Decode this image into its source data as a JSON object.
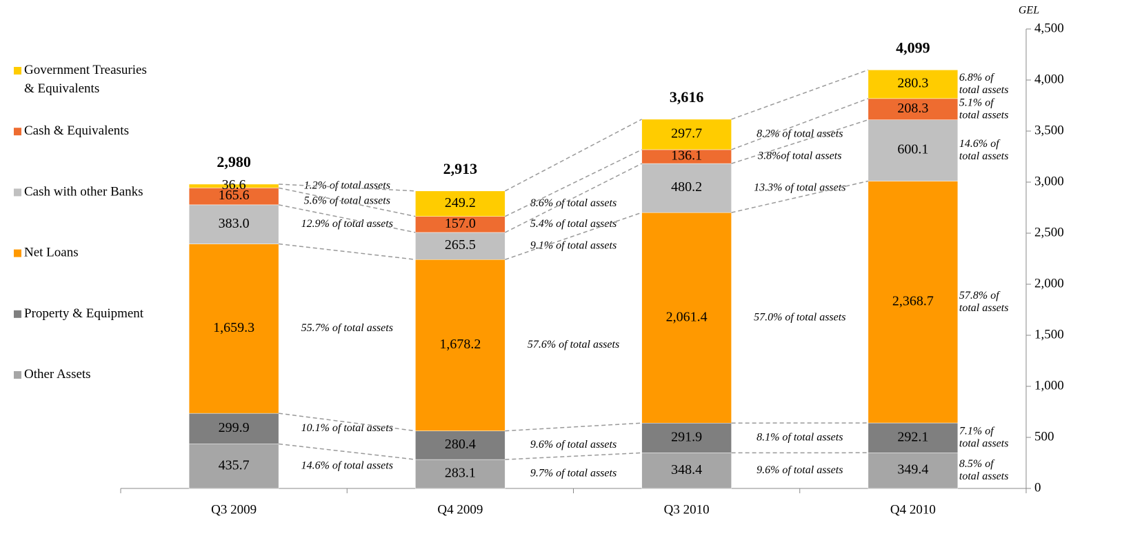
{
  "chart_data": {
    "type": "stacked_bar",
    "unit": "GEL",
    "categories": [
      "Q3 2009",
      "Q4 2009",
      "Q3 2010",
      "Q4 2010"
    ],
    "series": [
      {
        "name": "Other Assets",
        "color": "#a6a6a6",
        "values": [
          435.7,
          283.1,
          348.4,
          349.4
        ],
        "share_labels": [
          "14.6% of total assets",
          "9.7% of total assets",
          "9.6% of total assets",
          "8.5% of total assets"
        ]
      },
      {
        "name": "Property & Equipment",
        "color": "#7f7f7f",
        "values": [
          299.9,
          280.4,
          291.9,
          292.1
        ],
        "share_labels": [
          "10.1% of total assets",
          "9.6% of total assets",
          "8.1% of total assets",
          "7.1% of total assets"
        ]
      },
      {
        "name": "Net Loans",
        "color": "#ff9900",
        "values": [
          1659.3,
          1678.2,
          2061.4,
          2368.7
        ],
        "value_labels": [
          "1,659.3",
          "1,678.2",
          "2,061.4",
          "2,368.7"
        ],
        "share_labels": [
          "55.7% of total assets",
          "57.6% of total assets",
          "57.0% of total assets",
          "57.8% of total assets"
        ]
      },
      {
        "name": "Cash with other Banks",
        "color": "#c0c0c0",
        "values": [
          383.0,
          265.5,
          480.2,
          600.1
        ],
        "value_labels": [
          "383.0",
          "265.5",
          "480.2",
          "600.1"
        ],
        "share_labels": [
          "12.9% of total assets",
          "9.1% of total assets",
          "13.3% of total assets",
          "14.6% of total assets"
        ]
      },
      {
        "name": "Cash & Equivalents",
        "color": "#ee6c30",
        "values": [
          165.6,
          157.0,
          136.1,
          208.3
        ],
        "value_labels": [
          "165.6",
          "157.0",
          "136.1",
          "208.3"
        ],
        "share_labels": [
          "5.6% of total assets",
          "5.4% of total assets",
          "3.8%of total assets",
          "5.1% of total assets"
        ]
      },
      {
        "name": "Government Treasuries & Equivalents",
        "color": "#ffcc00",
        "values": [
          36.6,
          249.2,
          297.7,
          280.3
        ],
        "share_labels": [
          "1.2% of total assets",
          "8.6% of total assets",
          "8.2% of total assets",
          "6.8% of total assets"
        ]
      }
    ],
    "totals": {
      "values": [
        2980,
        2913,
        3616,
        4099
      ],
      "value_labels": [
        "2,980",
        "2,913",
        "3,616",
        "4,099"
      ]
    },
    "ylim": [
      0,
      4500
    ],
    "yticks": [
      0,
      500,
      {
        "value": 1000,
        "label": "1,000"
      },
      {
        "value": 1500,
        "label": "1,500"
      },
      {
        "value": 2000,
        "label": "2,000"
      },
      {
        "value": 2500,
        "label": "2,500"
      },
      {
        "value": 3000,
        "label": "3,000"
      },
      {
        "value": 3500,
        "label": "3,500"
      },
      {
        "value": 4000,
        "label": "4,000"
      },
      {
        "value": 4500,
        "label": "4,500"
      }
    ],
    "legend": "left"
  }
}
